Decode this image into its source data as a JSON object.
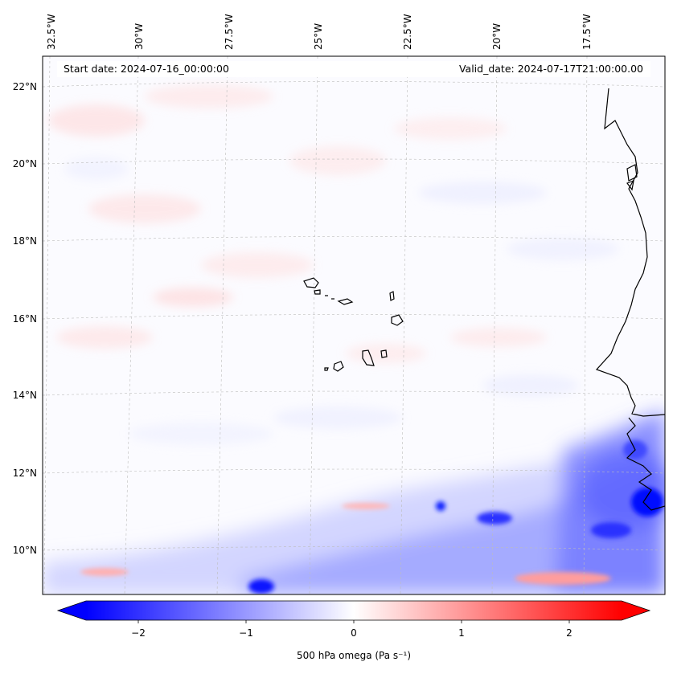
{
  "map": {
    "start_date_text": "Start date: 2024-07-16_00:00:00",
    "valid_date_text": "Valid_date: 2024-07-17T21:00:00.00",
    "lon_labels": [
      "32.5°W",
      "30°W",
      "27.5°W",
      "25°W",
      "22.5°W",
      "20°W",
      "17.5°W"
    ],
    "lat_labels": [
      "22°N",
      "20°N",
      "18°N",
      "16°N",
      "14°N",
      "12°N",
      "10°N"
    ],
    "features": [
      "Cape Verde islands",
      "West African coastline"
    ]
  },
  "colorbar": {
    "label_text": "500 hPa omega (Pa s⁻¹)",
    "ticks": [
      "−2",
      "−1",
      "0",
      "1",
      "2"
    ],
    "range": [
      -2.6,
      2.6
    ],
    "cmap": "bwr",
    "extend": "both",
    "colors": {
      "negative": "#0000ff",
      "zero": "#ffffff",
      "positive": "#ff0000"
    }
  }
}
